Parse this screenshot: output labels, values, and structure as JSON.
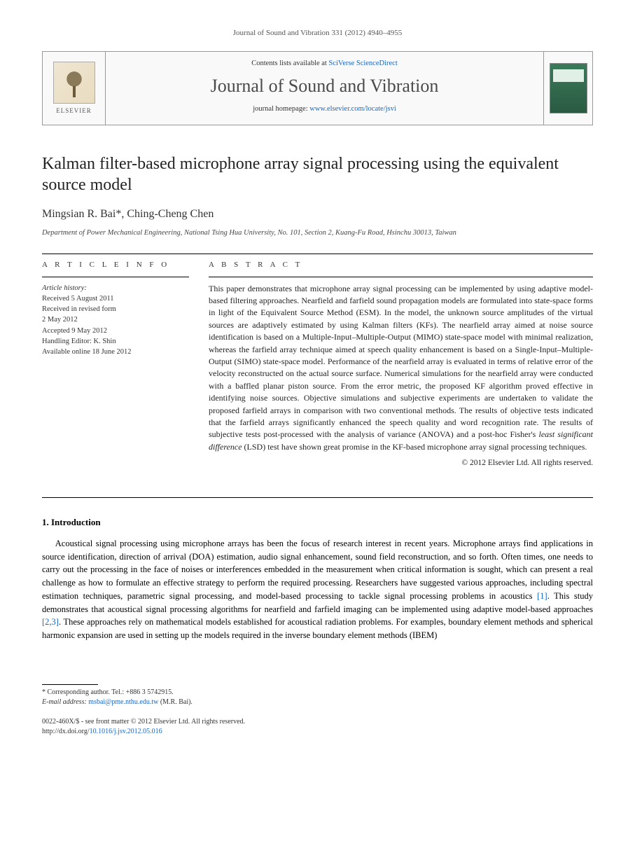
{
  "header": {
    "citation": "Journal of Sound and Vibration 331 (2012) 4940–4955",
    "contents_prefix": "Contents lists available at ",
    "contents_link": "SciVerse ScienceDirect",
    "journal_name": "Journal of Sound and Vibration",
    "homepage_prefix": "journal homepage: ",
    "homepage_url": "www.elsevier.com/locate/jsvi",
    "elsevier_brand": "ELSEVIER"
  },
  "article": {
    "title": "Kalman filter-based microphone array signal processing using the equivalent source model",
    "authors": "Mingsian R. Bai*, Ching-Cheng Chen",
    "affiliation": "Department of Power Mechanical Engineering, National Tsing Hua University, No. 101, Section 2, Kuang-Fu Road, Hsinchu 30013, Taiwan"
  },
  "labels": {
    "article_info": "A R T I C L E   I N F O",
    "abstract": "A B S T R A C T",
    "history_heading": "Article history:"
  },
  "history": {
    "received": "Received 5 August 2011",
    "revised_line1": "Received in revised form",
    "revised_line2": "2 May 2012",
    "accepted": "Accepted 9 May 2012",
    "editor": "Handling Editor: K. Shin",
    "online": "Available online 18 June 2012"
  },
  "abstract": {
    "text": "This paper demonstrates that microphone array signal processing can be implemented by using adaptive model-based filtering approaches. Nearfield and farfield sound propagation models are formulated into state-space forms in light of the Equivalent Source Method (ESM). In the model, the unknown source amplitudes of the virtual sources are adaptively estimated by using Kalman filters (KFs). The nearfield array aimed at noise source identification is based on a Multiple-Input–Multiple-Output (MIMO) state-space model with minimal realization, whereas the farfield array technique aimed at speech quality enhancement is based on a Single-Input–Multiple-Output (SIMO) state-space model. Performance of the nearfield array is evaluated in terms of relative error of the velocity reconstructed on the actual source surface. Numerical simulations for the nearfield array were conducted with a baffled planar piston source. From the error metric, the proposed KF algorithm proved effective in identifying noise sources. Objective simulations and subjective experiments are undertaken to validate the proposed farfield arrays in comparison with two conventional methods. The results of objective tests indicated that the farfield arrays significantly enhanced the speech quality and word recognition rate. The results of subjective tests post-processed with the analysis of variance (ANOVA) and a post-hoc Fisher's least significant difference (LSD) test have shown great promise in the KF-based microphone array signal processing techniques.",
    "copyright": "© 2012 Elsevier Ltd. All rights reserved."
  },
  "intro": {
    "heading": "1. Introduction",
    "paragraph_pre": "Acoustical signal processing using microphone arrays has been the focus of research interest in recent years. Microphone arrays find applications in source identification, direction of arrival (DOA) estimation, audio signal enhancement, sound field reconstruction, and so forth. Often times, one needs to carry out the processing in the face of noises or interferences embedded in the measurement when critical information is sought, which can present a real challenge as how to formulate an effective strategy to perform the required processing. Researchers have suggested various approaches, including spectral estimation techniques, parametric signal processing, and model-based processing to tackle signal processing problems in acoustics ",
    "ref1": "[1]",
    "paragraph_mid": ". This study demonstrates that acoustical signal processing algorithms for nearfield and farfield imaging can be implemented using adaptive model-based approaches ",
    "ref23": "[2,3]",
    "paragraph_post": ". These approaches rely on mathematical models established for acoustical radiation problems. For examples, boundary element methods and spherical harmonic expansion are used in setting up the models required in the inverse boundary element methods (IBEM)"
  },
  "footnote": {
    "corresponding": "* Corresponding author. Tel.: +886 3 5742915.",
    "email_label": "E-mail address: ",
    "email": "msbai@pme.nthu.edu.tw",
    "email_suffix": " (M.R. Bai)."
  },
  "copyright_block": {
    "line1": "0022-460X/$ - see front matter © 2012 Elsevier Ltd. All rights reserved.",
    "doi_prefix": "http://dx.doi.org/",
    "doi": "10.1016/j.jsv.2012.05.016"
  }
}
